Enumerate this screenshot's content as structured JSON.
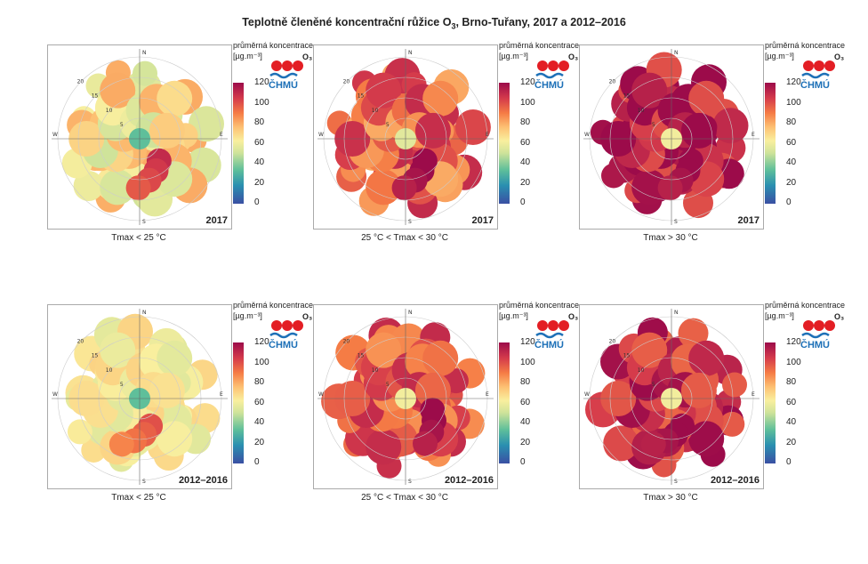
{
  "title_main": "Teplotně členěné koncentrační růžice O",
  "title_sub": "3",
  "title_rest": ", Brno-Tuřany, 2017 a 2012–2016",
  "colorbar": {
    "label1": "průměrná koncentrace",
    "label2": "[µg.m⁻³]",
    "pollutant": "O₃",
    "logo_text": "ČHMÚ",
    "ticks": [
      "120",
      "100",
      "80",
      "60",
      "40",
      "20",
      "0"
    ]
  },
  "axes": {
    "north": "N",
    "south": "S",
    "east": "E",
    "west": "W",
    "rings": [
      "5",
      "10",
      "15",
      "20"
    ]
  },
  "conditions": [
    "Tmax < 25 °C",
    "25 °C < Tmax < 30 °C",
    "Tmax > 30 °C"
  ],
  "years": [
    "2017",
    "2012–2016"
  ],
  "chart_data": [
    {
      "type": "heatmap",
      "year": "2017",
      "condition": "Tmax < 25 °C",
      "dominant_range": [
        50,
        80
      ],
      "center_min": 35,
      "max_sector": "SSE",
      "max_value": 110,
      "colorbar_range": [
        0,
        120
      ]
    },
    {
      "type": "heatmap",
      "year": "2017",
      "condition": "25 °C < Tmax < 30 °C",
      "dominant_range": [
        80,
        110
      ],
      "center_min": 55,
      "max_sector": "SSE",
      "max_value": 125,
      "colorbar_range": [
        0,
        120
      ]
    },
    {
      "type": "heatmap",
      "year": "2017",
      "condition": "Tmax > 30 °C",
      "dominant_range": [
        100,
        125
      ],
      "center_min": 60,
      "max_sector": "SSE",
      "max_value": 125,
      "colorbar_range": [
        0,
        120
      ]
    },
    {
      "type": "heatmap",
      "year": "2012–2016",
      "condition": "Tmax < 25 °C",
      "dominant_range": [
        55,
        70
      ],
      "center_min": 35,
      "max_sector": "S",
      "max_value": 100,
      "colorbar_range": [
        0,
        120
      ]
    },
    {
      "type": "heatmap",
      "year": "2012–2016",
      "condition": "25 °C < Tmax < 30 °C",
      "dominant_range": [
        85,
        110
      ],
      "center_min": 60,
      "max_sector": "SE",
      "max_value": 125,
      "colorbar_range": [
        0,
        120
      ]
    },
    {
      "type": "heatmap",
      "year": "2012–2016",
      "condition": "Tmax > 30 °C",
      "dominant_range": [
        95,
        120
      ],
      "center_min": 60,
      "max_sector": "E",
      "max_value": 125,
      "colorbar_range": [
        0,
        120
      ]
    }
  ]
}
